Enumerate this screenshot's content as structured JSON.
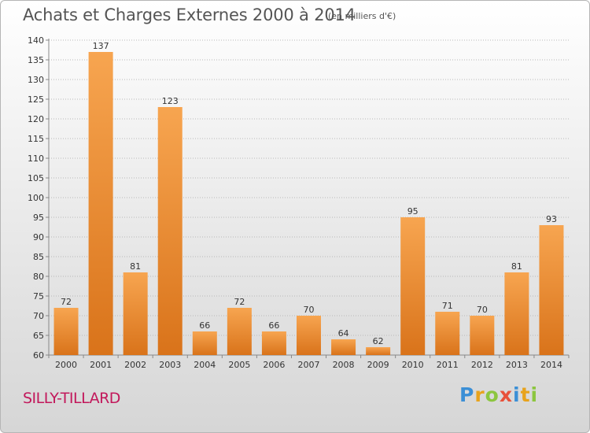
{
  "header": {
    "title": "Achats et Charges Externes 2000 à 2014",
    "unit": "(en milliers d'€)"
  },
  "footer": {
    "place": "SILLY-TILLARD",
    "brand_letters": [
      {
        "char": "P",
        "color": "#3b8fd6"
      },
      {
        "char": "r",
        "color": "#e8a31c"
      },
      {
        "char": "o",
        "color": "#8cc63f"
      },
      {
        "char": "x",
        "color": "#e8513a"
      },
      {
        "char": "i",
        "color": "#3b8fd6"
      },
      {
        "char": "t",
        "color": "#e8a31c"
      },
      {
        "char": "i",
        "color": "#8cc63f"
      }
    ]
  },
  "colors": {
    "bar_light": "#f7a550",
    "bar_dark": "#d9731a",
    "grid": "#b8b8b8",
    "text": "#333333"
  },
  "chart_data": {
    "type": "bar",
    "categories": [
      "2000",
      "2001",
      "2002",
      "2003",
      "2004",
      "2005",
      "2006",
      "2007",
      "2008",
      "2009",
      "2010",
      "2011",
      "2012",
      "2013",
      "2014"
    ],
    "values": [
      72,
      137,
      81,
      123,
      66,
      72,
      66,
      70,
      64,
      62,
      95,
      71,
      70,
      81,
      93
    ],
    "ylim": [
      60,
      140
    ],
    "yticks": [
      60,
      65,
      70,
      75,
      80,
      85,
      90,
      95,
      100,
      105,
      110,
      115,
      120,
      125,
      130,
      135,
      140
    ],
    "grid": "horizontal-dotted",
    "legend": "none"
  }
}
